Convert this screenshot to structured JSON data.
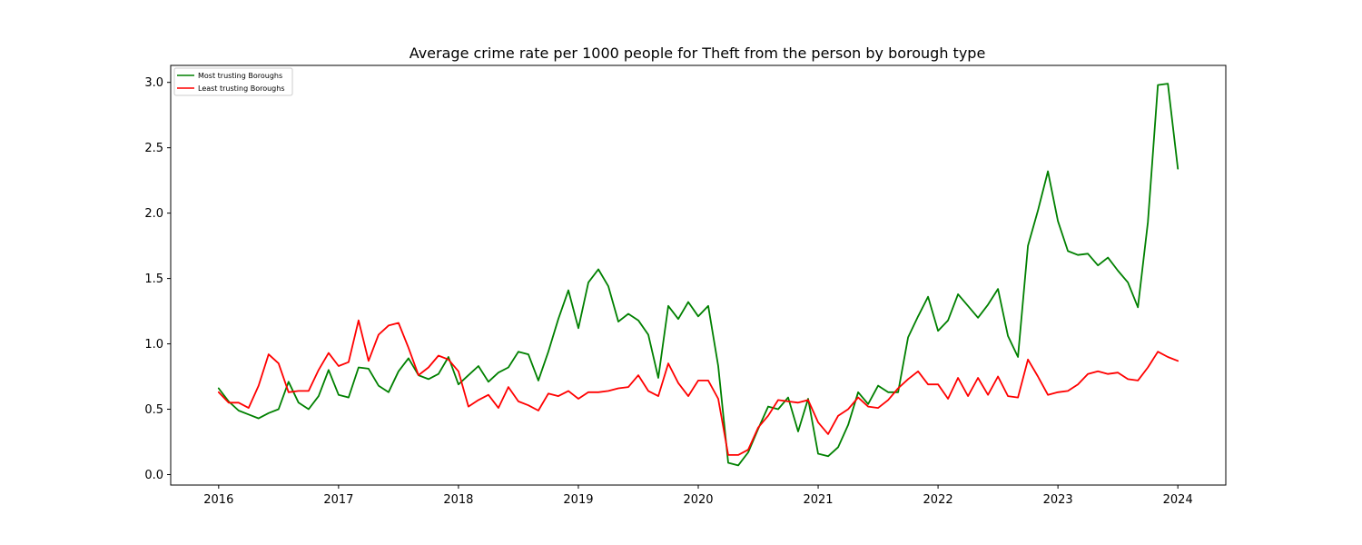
{
  "chart_data": {
    "type": "line",
    "title": "Average crime rate per 1000 people for Theft from the person by borough type",
    "xlabel": "",
    "ylabel": "",
    "xlim": [
      2015.6,
      2024.4
    ],
    "ylim": [
      -0.08,
      3.13
    ],
    "x_ticks": [
      "2016",
      "2017",
      "2018",
      "2019",
      "2020",
      "2021",
      "2022",
      "2023",
      "2024"
    ],
    "y_ticks": [
      "0.0",
      "0.5",
      "1.0",
      "1.5",
      "2.0",
      "2.5",
      "3.0"
    ],
    "grid": false,
    "legend_position": "top-left",
    "x_start": "2016-01",
    "x_step_months": 1,
    "series": [
      {
        "name": "Most trusting Boroughs",
        "color": "#008000",
        "values": [
          0.66,
          0.56,
          0.49,
          0.46,
          0.43,
          0.47,
          0.5,
          0.71,
          0.55,
          0.5,
          0.6,
          0.8,
          0.61,
          0.59,
          0.82,
          0.81,
          0.68,
          0.63,
          0.79,
          0.89,
          0.76,
          0.73,
          0.77,
          0.9,
          0.69,
          0.76,
          0.83,
          0.71,
          0.78,
          0.82,
          0.94,
          0.92,
          0.72,
          0.94,
          1.19,
          1.41,
          1.12,
          1.47,
          1.57,
          1.44,
          1.17,
          1.23,
          1.18,
          1.07,
          0.74,
          1.29,
          1.19,
          1.32,
          1.21,
          1.29,
          0.83,
          0.09,
          0.07,
          0.17,
          0.35,
          0.52,
          0.5,
          0.59,
          0.33,
          0.58,
          0.16,
          0.14,
          0.21,
          0.38,
          0.63,
          0.54,
          0.68,
          0.63,
          0.63,
          1.05,
          1.21,
          1.36,
          1.1,
          1.18,
          1.38,
          1.29,
          1.2,
          1.3,
          1.42,
          1.06,
          0.9,
          1.75,
          2.02,
          2.32,
          1.94,
          1.71,
          1.68,
          1.69,
          1.6,
          1.66,
          1.56,
          1.47,
          1.28,
          1.93,
          2.98,
          2.99,
          2.34
        ]
      },
      {
        "name": "Least trusting Boroughs",
        "color": "#ff0000",
        "values": [
          0.63,
          0.55,
          0.55,
          0.51,
          0.68,
          0.92,
          0.85,
          0.63,
          0.64,
          0.64,
          0.8,
          0.93,
          0.83,
          0.86,
          1.18,
          0.87,
          1.07,
          1.14,
          1.16,
          0.97,
          0.76,
          0.82,
          0.91,
          0.88,
          0.79,
          0.52,
          0.57,
          0.61,
          0.51,
          0.67,
          0.56,
          0.53,
          0.49,
          0.62,
          0.6,
          0.64,
          0.58,
          0.63,
          0.63,
          0.64,
          0.66,
          0.67,
          0.76,
          0.64,
          0.6,
          0.85,
          0.7,
          0.6,
          0.72,
          0.72,
          0.58,
          0.15,
          0.15,
          0.19,
          0.36,
          0.45,
          0.57,
          0.56,
          0.55,
          0.57,
          0.4,
          0.31,
          0.45,
          0.5,
          0.59,
          0.52,
          0.51,
          0.57,
          0.66,
          0.73,
          0.79,
          0.69,
          0.69,
          0.58,
          0.74,
          0.6,
          0.74,
          0.61,
          0.75,
          0.6,
          0.59,
          0.88,
          0.75,
          0.61,
          0.63,
          0.64,
          0.69,
          0.77,
          0.79,
          0.77,
          0.78,
          0.73,
          0.72,
          0.82,
          0.94,
          0.9,
          0.87
        ]
      }
    ]
  }
}
